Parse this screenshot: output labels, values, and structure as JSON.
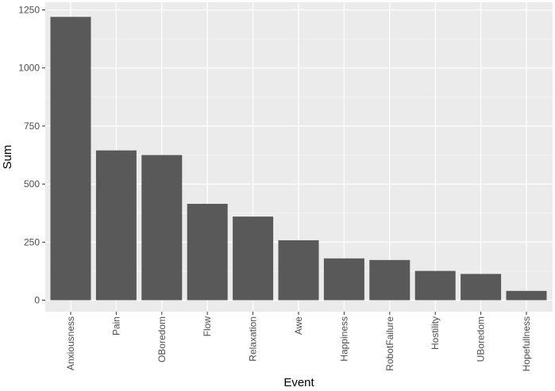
{
  "chart_data": {
    "type": "bar",
    "xlabel": "Event",
    "ylabel": "Sum",
    "categories": [
      "Anxiousness",
      "Pain",
      "OBoredom",
      "Flow",
      "Relaxation",
      "Awe",
      "Happiness",
      "RobotFailure",
      "Hostility",
      "UBoredom",
      "Hopefullness"
    ],
    "values": [
      1220,
      645,
      625,
      415,
      360,
      258,
      180,
      173,
      126,
      113,
      40
    ],
    "ylim": [
      0,
      1290
    ],
    "yticks": [
      0,
      250,
      500,
      750,
      1000,
      1250
    ],
    "ytick_labels": [
      "0",
      "250",
      "500",
      "750",
      "1000",
      "1250"
    ],
    "grid": true,
    "colors": {
      "panel": "#ebebeb",
      "grid_major": "#ffffff",
      "bar": "#595959",
      "tick": "#333333"
    }
  }
}
